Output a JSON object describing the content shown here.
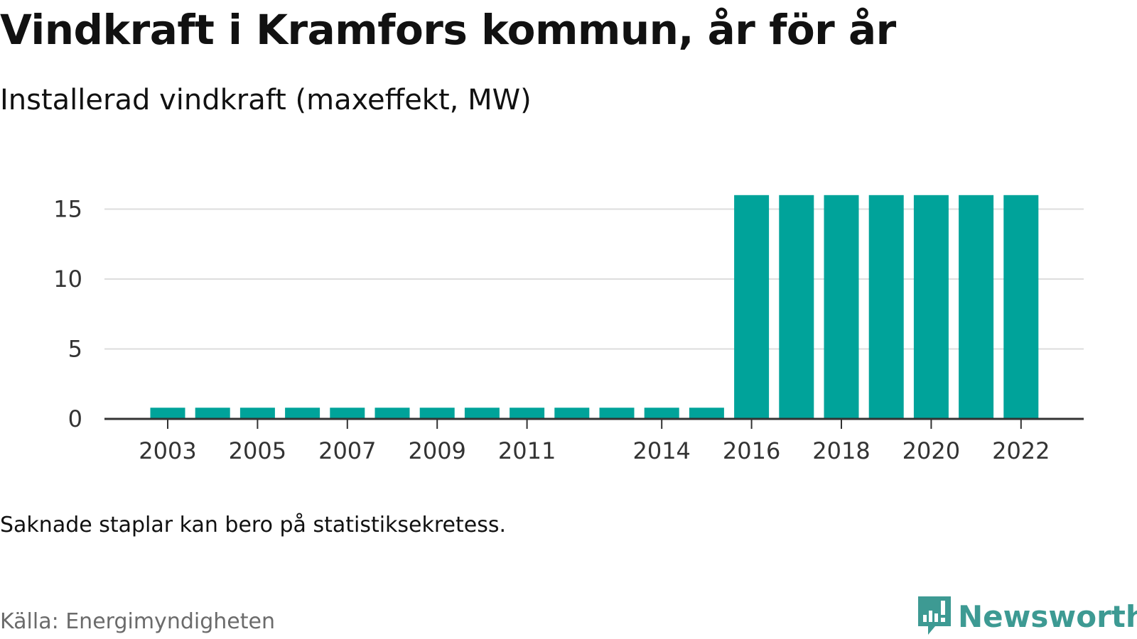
{
  "title": "Vindkraft i Kramfors kommun, år för år",
  "subtitle": "Installerad vindkraft (maxeffekt, MW)",
  "note": "Saknade staplar kan bero på statistiksekretess.",
  "source": "Källa: Energimyndigheten",
  "brand": {
    "name": "Newsworthy",
    "icon": "newsworthy-logo-icon",
    "color": "#3d9a93"
  },
  "chart_data": {
    "type": "bar",
    "categories": [
      "2003",
      "2004",
      "2005",
      "2006",
      "2007",
      "2008",
      "2009",
      "2010",
      "2011",
      "2012",
      "2013",
      "2014",
      "2015",
      "2016",
      "2017",
      "2018",
      "2019",
      "2020",
      "2021",
      "2022"
    ],
    "values": [
      0.8,
      0.8,
      0.8,
      0.8,
      0.8,
      0.8,
      0.8,
      0.8,
      0.8,
      0.8,
      0.8,
      0.8,
      0.8,
      16,
      16,
      16,
      16,
      16,
      16,
      16
    ],
    "x_tick_labels": [
      "2003",
      "2005",
      "2007",
      "2009",
      "2011",
      "2014",
      "2016",
      "2018",
      "2020",
      "2022"
    ],
    "y_ticks": [
      "0",
      "5",
      "10",
      "15"
    ],
    "ylim": [
      0,
      16
    ],
    "grid": true,
    "bar_color": "#00a39a",
    "grid_color": "#dddddd",
    "axis_color": "#333333"
  }
}
